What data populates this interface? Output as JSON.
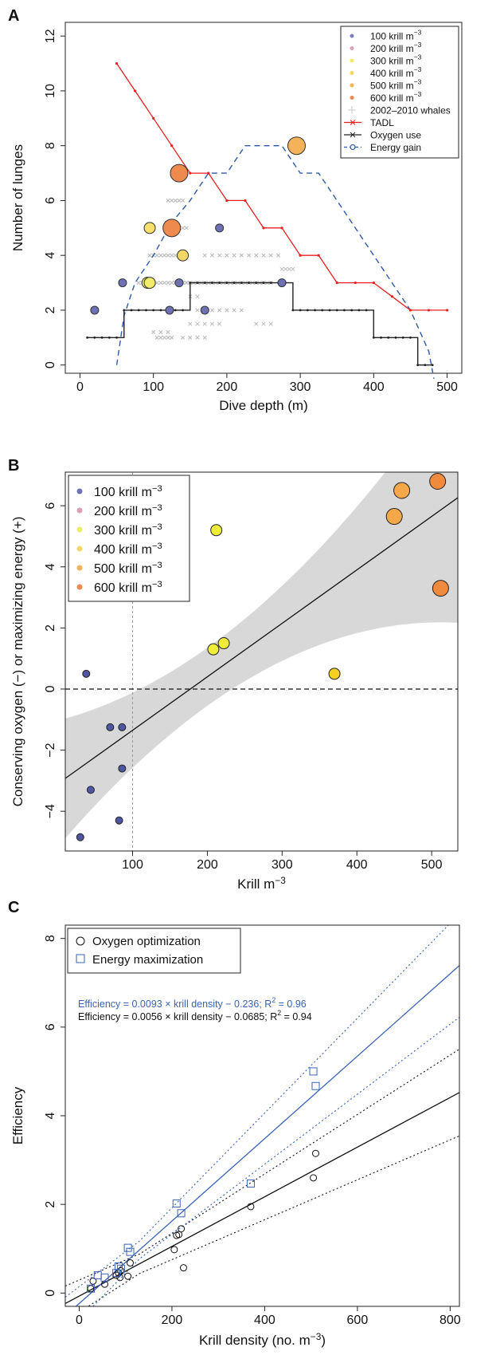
{
  "chart_data": [
    {
      "panel": "A",
      "type": "scatter",
      "xlabel": "Dive depth (m)",
      "ylabel": "Number of lunges",
      "xlim": [
        -20,
        520
      ],
      "ylim": [
        -0.3,
        12.5
      ],
      "xticks": [
        0,
        100,
        200,
        300,
        400,
        500
      ],
      "yticks": [
        0,
        2,
        4,
        6,
        8,
        10,
        12
      ],
      "legend_position": "top-right",
      "legend": [
        {
          "label": "100 krill m",
          "sup": "−3",
          "kind": "dot",
          "color": "#7f7fc0"
        },
        {
          "label": "200 krill m",
          "sup": "−3",
          "kind": "dot",
          "color": "#d9a0b8"
        },
        {
          "label": "300 krill m",
          "sup": "−3",
          "kind": "dot",
          "color": "#f0ec6a"
        },
        {
          "label": "400 krill m",
          "sup": "−3",
          "kind": "dot",
          "color": "#f4d764"
        },
        {
          "label": "500 krill m",
          "sup": "−3",
          "kind": "dot",
          "color": "#f4b25a"
        },
        {
          "label": "600 krill m",
          "sup": "−3",
          "kind": "dot",
          "color": "#ef8a4e"
        },
        {
          "label": "2002–2010 whales",
          "sup": "",
          "kind": "plus",
          "color": "#c8c8c8"
        },
        {
          "label": "TADL",
          "sup": "",
          "kind": "xline",
          "color": "#e8201f"
        },
        {
          "label": "Oxygen use",
          "sup": "",
          "kind": "xline",
          "color": "#222222"
        },
        {
          "label": "Energy gain",
          "sup": "",
          "kind": "odash",
          "color": "#2f5aa8"
        }
      ],
      "tadl": {
        "color": "#e8201f",
        "x": [
          50,
          75,
          100,
          125,
          150,
          175,
          200,
          225,
          250,
          275,
          300,
          325,
          350,
          375,
          400,
          425,
          450,
          475,
          500
        ],
        "y": [
          11,
          10,
          9,
          8,
          7,
          7,
          6,
          6,
          5,
          5,
          4,
          4,
          3,
          3,
          3,
          2.5,
          2,
          2,
          2
        ]
      },
      "oxygen": {
        "color": "#222222",
        "x": [
          10,
          20,
          30,
          40,
          50,
          60,
          70,
          80,
          90,
          100,
          110,
          120,
          130,
          140,
          150,
          160,
          170,
          180,
          190,
          200,
          210,
          220,
          230,
          240,
          250,
          260,
          270,
          280,
          290,
          300,
          310,
          320,
          330,
          340,
          350,
          360,
          370,
          380,
          390,
          400,
          410,
          420,
          430,
          440,
          450,
          460,
          470,
          480
        ],
        "y": [
          1,
          1,
          1,
          1,
          1,
          2,
          2,
          2,
          2,
          2,
          2,
          2,
          2,
          2,
          3,
          3,
          3,
          3,
          3,
          3,
          3,
          3,
          3,
          3,
          3,
          3,
          3,
          3,
          2,
          2,
          2,
          2,
          2,
          2,
          2,
          2,
          2,
          2,
          2,
          1,
          1,
          1,
          1,
          1,
          1,
          0,
          0,
          0
        ]
      },
      "energy": {
        "color": "#2f5aa8",
        "x": [
          50,
          60,
          75,
          100,
          125,
          150,
          175,
          200,
          225,
          250,
          275,
          300,
          325,
          350,
          375,
          400,
          425,
          450,
          475,
          482
        ],
        "y": [
          0,
          1.8,
          3,
          4,
          5.2,
          6,
          7,
          7,
          8,
          8,
          8,
          7,
          7,
          6,
          5,
          4,
          3,
          2,
          0.5,
          -0.5
        ]
      },
      "whales": {
        "color": "#b8b8b8",
        "x": [
          80,
          85,
          90,
          95,
          100,
          95,
          100,
          105,
          110,
          115,
          120,
          125,
          130,
          120,
          125,
          130,
          135,
          140,
          100,
          105,
          110,
          115,
          120,
          125,
          130,
          135,
          140,
          145,
          150,
          115,
          120,
          125,
          130,
          135,
          140,
          145,
          130,
          135,
          140,
          145,
          150,
          155,
          160,
          165,
          170,
          175,
          180,
          185,
          190,
          195,
          200,
          205,
          210,
          215,
          220,
          225,
          230,
          235,
          240,
          245,
          250,
          255,
          260,
          170,
          180,
          190,
          200,
          210,
          220,
          230,
          240,
          250,
          260,
          270,
          275,
          280,
          285,
          290,
          160,
          170,
          180,
          190,
          200,
          210,
          220,
          150,
          160,
          170,
          180,
          190,
          140,
          150,
          160,
          170,
          240,
          250,
          260,
          105,
          110,
          115,
          120,
          125,
          100,
          110,
          120,
          150,
          160
        ],
        "y": [
          3,
          3,
          3,
          3,
          3,
          4,
          4,
          4,
          4,
          4,
          4,
          4,
          4,
          6,
          6,
          6,
          6,
          6,
          3,
          3,
          3,
          3,
          3,
          3,
          3,
          3,
          3,
          3,
          3,
          5,
          5,
          5,
          5,
          5,
          5,
          5,
          3,
          3,
          3,
          3,
          3,
          3,
          3,
          3,
          3,
          3,
          3,
          3,
          3,
          3,
          3,
          3,
          3,
          3,
          3,
          3,
          3,
          3,
          3,
          3,
          3,
          3,
          3,
          4,
          4,
          4,
          4,
          4,
          4,
          4,
          4,
          4,
          4,
          4,
          3.5,
          3.5,
          3.5,
          3.5,
          2,
          2,
          2,
          2,
          2,
          2,
          2,
          1.5,
          1.5,
          1.5,
          1.5,
          1.5,
          1,
          1,
          1,
          1,
          1.5,
          1.5,
          1.5,
          1,
          1,
          1,
          1,
          1,
          1.2,
          1.2,
          1.2,
          2.5,
          2.5
        ]
      },
      "obs": [
        {
          "x": 20,
          "y": 2,
          "c": "#6f71b5",
          "s": 1
        },
        {
          "x": 58,
          "y": 3,
          "c": "#6f71b5",
          "s": 1
        },
        {
          "x": 122,
          "y": 2,
          "c": "#6f71b5",
          "s": 1
        },
        {
          "x": 135,
          "y": 3,
          "c": "#6f71b5",
          "s": 1
        },
        {
          "x": 170,
          "y": 2,
          "c": "#6f71b5",
          "s": 1
        },
        {
          "x": 190,
          "y": 5,
          "c": "#6f71b5",
          "s": 1
        },
        {
          "x": 275,
          "y": 3,
          "c": "#6f71b5",
          "s": 1
        },
        {
          "x": 92,
          "y": 3,
          "c": "#f0ec6a",
          "s": 2
        },
        {
          "x": 95,
          "y": 3,
          "c": "#f0ec6a",
          "s": 2
        },
        {
          "x": 95,
          "y": 5,
          "c": "#f4e06a",
          "s": 2
        },
        {
          "x": 140,
          "y": 4,
          "c": "#f4d764",
          "s": 2
        },
        {
          "x": 125,
          "y": 5,
          "c": "#ef8a4e",
          "s": 3
        },
        {
          "x": 135,
          "y": 7,
          "c": "#ef8a4e",
          "s": 3
        },
        {
          "x": 295,
          "y": 8,
          "c": "#f4b25a",
          "s": 3
        }
      ]
    },
    {
      "panel": "B",
      "type": "scatter",
      "xlabel": "Krill m",
      "xlabel_sup": "−3",
      "ylabel": "Conserving oxygen (−) or maximizing energy (+)",
      "xlim": [
        10,
        535
      ],
      "ylim": [
        -5.3,
        7.1
      ],
      "xticks": [
        100,
        200,
        300,
        400,
        500
      ],
      "yticks": [
        -4,
        -2,
        0,
        2,
        4,
        6
      ],
      "legend_position": "top-left",
      "legend": [
        {
          "label": "100 krill m",
          "sup": "−3",
          "color": "#6f71b5"
        },
        {
          "label": "200 krill m",
          "sup": "−3",
          "color": "#d9a0b8"
        },
        {
          "label": "300 krill m",
          "sup": "−3",
          "color": "#f0ec6a"
        },
        {
          "label": "400 krill m",
          "sup": "−3",
          "color": "#f4d764"
        },
        {
          "label": "500 krill m",
          "sup": "−3",
          "color": "#f4b25a"
        },
        {
          "label": "600 krill m",
          "sup": "−3",
          "color": "#ef8a4e"
        }
      ],
      "fit": {
        "slope": 0.0175,
        "intercept": -3.1
      },
      "vline": 100,
      "hline": 0,
      "points": [
        {
          "x": 30,
          "y": -4.85,
          "c": "#4f55a0",
          "s": 1
        },
        {
          "x": 38,
          "y": 0.5,
          "c": "#4f55a0",
          "s": 1
        },
        {
          "x": 44,
          "y": -3.3,
          "c": "#4f55a0",
          "s": 1
        },
        {
          "x": 70,
          "y": -1.25,
          "c": "#4f55a0",
          "s": 1
        },
        {
          "x": 82,
          "y": -4.3,
          "c": "#4f55a0",
          "s": 1
        },
        {
          "x": 86,
          "y": -1.25,
          "c": "#4f55a0",
          "s": 1
        },
        {
          "x": 86,
          "y": -2.6,
          "c": "#4f55a0",
          "s": 1
        },
        {
          "x": 208,
          "y": 1.3,
          "c": "#f0ec3a",
          "s": 2
        },
        {
          "x": 212,
          "y": 5.2,
          "c": "#f0ec3a",
          "s": 2
        },
        {
          "x": 222,
          "y": 1.5,
          "c": "#f0ec3a",
          "s": 2
        },
        {
          "x": 370,
          "y": 0.5,
          "c": "#f4d023",
          "s": 2
        },
        {
          "x": 450,
          "y": 5.65,
          "c": "#f4a84a",
          "s": 3
        },
        {
          "x": 460,
          "y": 6.5,
          "c": "#f4a84a",
          "s": 3
        },
        {
          "x": 508,
          "y": 6.8,
          "c": "#ef8a3e",
          "s": 3
        },
        {
          "x": 512,
          "y": 3.3,
          "c": "#ef8a3e",
          "s": 3
        }
      ]
    },
    {
      "panel": "C",
      "type": "scatter",
      "xlabel": "Krill density (no. m",
      "xlabel_sup": "−3",
      "xlabel_tail": ")",
      "ylabel": "Efficiency",
      "xlim": [
        -30,
        820
      ],
      "ylim": [
        -0.3,
        8.3
      ],
      "xticks": [
        0,
        200,
        400,
        600,
        800
      ],
      "yticks": [
        0,
        2,
        4,
        6,
        8
      ],
      "legend_position": "top-left",
      "legend": [
        {
          "label": "Oxygen optimization",
          "kind": "circle",
          "color": "#111111"
        },
        {
          "label": "Energy maximization",
          "kind": "square",
          "color": "#3a62b8"
        }
      ],
      "eq_energy": "Efficiency = 0.0093 × krill density − 0.236; R",
      "eq_energy_r2": "= 0.96",
      "eq_oxygen": "Efficiency = 0.0056 × krill density − 0.0685; R",
      "eq_oxygen_r2": "= 0.94",
      "sup2": "2",
      "energy_fit": {
        "slope": 0.0093,
        "intercept": -0.236,
        "color": "#3a62b8"
      },
      "oxygen_fit": {
        "slope": 0.0056,
        "intercept": -0.0685,
        "color": "#111111"
      },
      "energy_points": {
        "x": [
          25,
          40,
          55,
          80,
          85,
          90,
          105,
          110,
          210,
          220,
          370,
          505,
          510
        ],
        "y": [
          0.1,
          0.4,
          0.35,
          0.45,
          0.6,
          0.55,
          1.02,
          0.93,
          2.02,
          1.8,
          2.47,
          5.0,
          4.67
        ]
      },
      "oxygen_points": {
        "x": [
          25,
          30,
          55,
          80,
          85,
          88,
          90,
          105,
          110,
          205,
          210,
          215,
          220,
          225,
          370,
          505,
          510
        ],
        "y": [
          0.1,
          0.27,
          0.2,
          0.4,
          0.45,
          0.35,
          0.5,
          0.38,
          0.68,
          0.98,
          1.3,
          1.32,
          1.45,
          0.57,
          1.95,
          2.6,
          3.15
        ]
      }
    }
  ],
  "panel_labels": [
    "A",
    "B",
    "C"
  ]
}
